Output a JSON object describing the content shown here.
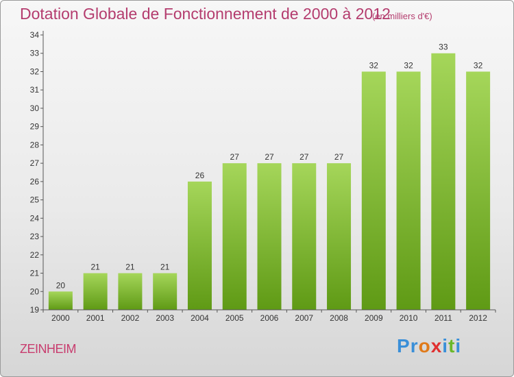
{
  "title": "Dotation Globale de Fonctionnement de 2000 à 2012",
  "subtitle": "(en milliers d'€)",
  "commune": "ZEINHEIM",
  "logo": {
    "text": "Proxiti",
    "letter_colors": [
      "#3a8fd8",
      "#3a8fd8",
      "#e07a1a",
      "#e03030",
      "#3a8fd8",
      "#6ab82a",
      "#3a8fd8"
    ]
  },
  "colors": {
    "bar_top": "#a5d65a",
    "bar_bottom": "#5f9a15",
    "axis": "#555555",
    "title": "#b43c6e"
  },
  "chart_data": {
    "type": "bar",
    "categories": [
      "2000",
      "2001",
      "2002",
      "2003",
      "2004",
      "2005",
      "2006",
      "2007",
      "2008",
      "2009",
      "2010",
      "2011",
      "2012"
    ],
    "values": [
      20,
      21,
      21,
      21,
      26,
      27,
      27,
      27,
      27,
      32,
      32,
      33,
      32
    ],
    "data_labels": [
      "20",
      "21",
      "21",
      "21",
      "26",
      "27",
      "27",
      "27",
      "27",
      "32",
      "32",
      "33",
      "32"
    ],
    "ylim": [
      19,
      34
    ],
    "yticks": [
      "19",
      "20",
      "21",
      "22",
      "23",
      "24",
      "25",
      "26",
      "27",
      "28",
      "29",
      "30",
      "31",
      "32",
      "33",
      "34"
    ],
    "xlabel": "",
    "ylabel": "",
    "grid": false,
    "legend": "none"
  }
}
